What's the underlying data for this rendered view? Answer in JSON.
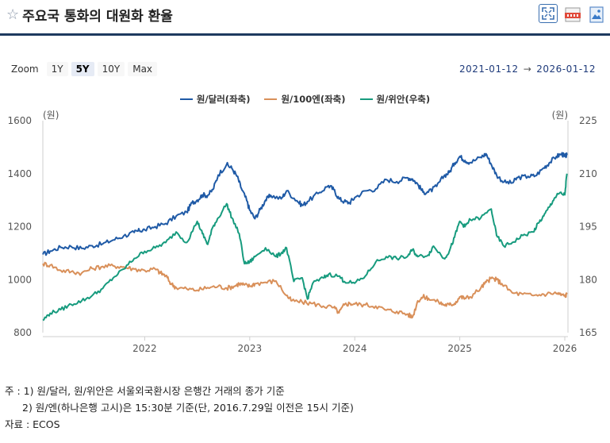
{
  "header": {
    "title": "주요국 통화의 대원화 환율",
    "icons": [
      "fullscreen-icon",
      "data-download-icon",
      "image-download-icon"
    ]
  },
  "zoom": {
    "label": "Zoom",
    "buttons": [
      "1Y",
      "5Y",
      "10Y",
      "Max"
    ],
    "active": "5Y"
  },
  "range": {
    "from": "2021-01-12",
    "arrow": "→",
    "to": "2026-01-12"
  },
  "chart_data": {
    "type": "line",
    "left_axis": {
      "unit": "(원)",
      "ticks": [
        "800",
        "1000",
        "1200",
        "1400",
        "1600"
      ],
      "ylim": [
        800,
        1600
      ]
    },
    "right_axis": {
      "unit": "(원)",
      "ticks": [
        "165",
        "180",
        "195",
        "210",
        "225"
      ],
      "ylim": [
        165,
        225
      ]
    },
    "x_ticks": [
      "2022",
      "2023",
      "2024",
      "2025",
      "2026"
    ],
    "x_range": [
      2021.03,
      2026.03
    ],
    "series": [
      {
        "name": "원/달러(좌축)",
        "color": "#1f5aa6",
        "axis": "left",
        "points": [
          [
            2021.03,
            1095
          ],
          [
            2021.1,
            1108
          ],
          [
            2021.2,
            1122
          ],
          [
            2021.3,
            1125
          ],
          [
            2021.4,
            1118
          ],
          [
            2021.5,
            1128
          ],
          [
            2021.6,
            1135
          ],
          [
            2021.7,
            1150
          ],
          [
            2021.8,
            1165
          ],
          [
            2021.9,
            1178
          ],
          [
            2021.95,
            1185
          ],
          [
            2022.0,
            1188
          ],
          [
            2022.1,
            1200
          ],
          [
            2022.2,
            1212
          ],
          [
            2022.3,
            1240
          ],
          [
            2022.4,
            1255
          ],
          [
            2022.45,
            1290
          ],
          [
            2022.5,
            1300
          ],
          [
            2022.55,
            1320
          ],
          [
            2022.6,
            1318
          ],
          [
            2022.65,
            1340
          ],
          [
            2022.7,
            1395
          ],
          [
            2022.78,
            1435
          ],
          [
            2022.83,
            1420
          ],
          [
            2022.88,
            1390
          ],
          [
            2022.92,
            1345
          ],
          [
            2022.97,
            1300
          ],
          [
            2023.0,
            1262
          ],
          [
            2023.05,
            1230
          ],
          [
            2023.1,
            1265
          ],
          [
            2023.15,
            1300
          ],
          [
            2023.2,
            1318
          ],
          [
            2023.3,
            1305
          ],
          [
            2023.35,
            1335
          ],
          [
            2023.45,
            1298
          ],
          [
            2023.5,
            1280
          ],
          [
            2023.55,
            1295
          ],
          [
            2023.65,
            1325
          ],
          [
            2023.75,
            1355
          ],
          [
            2023.8,
            1340
          ],
          [
            2023.85,
            1305
          ],
          [
            2023.9,
            1295
          ],
          [
            2023.95,
            1290
          ],
          [
            2024.0,
            1310
          ],
          [
            2024.1,
            1335
          ],
          [
            2024.2,
            1342
          ],
          [
            2024.3,
            1378
          ],
          [
            2024.4,
            1370
          ],
          [
            2024.5,
            1385
          ],
          [
            2024.55,
            1380
          ],
          [
            2024.6,
            1360
          ],
          [
            2024.65,
            1330
          ],
          [
            2024.7,
            1330
          ],
          [
            2024.78,
            1352
          ],
          [
            2024.85,
            1392
          ],
          [
            2024.9,
            1405
          ],
          [
            2024.95,
            1440
          ],
          [
            2025.0,
            1465
          ],
          [
            2025.05,
            1450
          ],
          [
            2025.1,
            1442
          ],
          [
            2025.2,
            1462
          ],
          [
            2025.25,
            1475
          ],
          [
            2025.3,
            1435
          ],
          [
            2025.35,
            1395
          ],
          [
            2025.42,
            1368
          ],
          [
            2025.5,
            1365
          ],
          [
            2025.55,
            1385
          ],
          [
            2025.65,
            1390
          ],
          [
            2025.72,
            1392
          ],
          [
            2025.8,
            1422
          ],
          [
            2025.85,
            1440
          ],
          [
            2025.92,
            1465
          ],
          [
            2025.97,
            1475
          ],
          [
            2026.0,
            1465
          ],
          [
            2026.02,
            1470
          ]
        ]
      },
      {
        "name": "원/100엔(좌축)",
        "color": "#d9905a",
        "axis": "left",
        "points": [
          [
            2021.03,
            1060
          ],
          [
            2021.1,
            1055
          ],
          [
            2021.2,
            1035
          ],
          [
            2021.3,
            1030
          ],
          [
            2021.4,
            1025
          ],
          [
            2021.5,
            1042
          ],
          [
            2021.6,
            1050
          ],
          [
            2021.7,
            1052
          ],
          [
            2021.8,
            1048
          ],
          [
            2021.9,
            1040
          ],
          [
            2022.0,
            1035
          ],
          [
            2022.1,
            1040
          ],
          [
            2022.15,
            1025
          ],
          [
            2022.2,
            1015
          ],
          [
            2022.25,
            985
          ],
          [
            2022.3,
            970
          ],
          [
            2022.4,
            965
          ],
          [
            2022.5,
            960
          ],
          [
            2022.6,
            970
          ],
          [
            2022.7,
            975
          ],
          [
            2022.78,
            968
          ],
          [
            2022.85,
            975
          ],
          [
            2022.9,
            985
          ],
          [
            2022.95,
            980
          ],
          [
            2023.0,
            975
          ],
          [
            2023.05,
            985
          ],
          [
            2023.15,
            990
          ],
          [
            2023.25,
            995
          ],
          [
            2023.35,
            940
          ],
          [
            2023.4,
            920
          ],
          [
            2023.5,
            915
          ],
          [
            2023.6,
            910
          ],
          [
            2023.7,
            900
          ],
          [
            2023.8,
            895
          ],
          [
            2023.85,
            875
          ],
          [
            2023.9,
            905
          ],
          [
            2023.95,
            910
          ],
          [
            2024.0,
            908
          ],
          [
            2024.1,
            905
          ],
          [
            2024.2,
            900
          ],
          [
            2024.3,
            885
          ],
          [
            2024.4,
            880
          ],
          [
            2024.5,
            870
          ],
          [
            2024.55,
            858
          ],
          [
            2024.6,
            920
          ],
          [
            2024.65,
            935
          ],
          [
            2024.7,
            930
          ],
          [
            2024.8,
            915
          ],
          [
            2024.85,
            905
          ],
          [
            2024.9,
            905
          ],
          [
            2024.95,
            910
          ],
          [
            2025.0,
            935
          ],
          [
            2025.05,
            930
          ],
          [
            2025.1,
            935
          ],
          [
            2025.2,
            968
          ],
          [
            2025.25,
            990
          ],
          [
            2025.3,
            1005
          ],
          [
            2025.35,
            1000
          ],
          [
            2025.4,
            985
          ],
          [
            2025.5,
            950
          ],
          [
            2025.6,
            945
          ],
          [
            2025.7,
            940
          ],
          [
            2025.8,
            945
          ],
          [
            2025.9,
            950
          ],
          [
            2025.95,
            945
          ],
          [
            2026.0,
            938
          ],
          [
            2026.02,
            945
          ]
        ]
      },
      {
        "name": "원/위안(우축)",
        "color": "#179b7e",
        "axis": "right",
        "points": [
          [
            2021.03,
            168.5
          ],
          [
            2021.1,
            170.5
          ],
          [
            2021.2,
            171.5
          ],
          [
            2021.3,
            173.0
          ],
          [
            2021.4,
            174.0
          ],
          [
            2021.5,
            175.5
          ],
          [
            2021.6,
            177.5
          ],
          [
            2021.7,
            180.5
          ],
          [
            2021.8,
            183.0
          ],
          [
            2021.9,
            186.0
          ],
          [
            2022.0,
            188.0
          ],
          [
            2022.1,
            189.0
          ],
          [
            2022.2,
            190.5
          ],
          [
            2022.3,
            193.5
          ],
          [
            2022.4,
            190.5
          ],
          [
            2022.5,
            196.5
          ],
          [
            2022.55,
            193.0
          ],
          [
            2022.6,
            190.0
          ],
          [
            2022.65,
            195.0
          ],
          [
            2022.7,
            197.5
          ],
          [
            2022.78,
            201.5
          ],
          [
            2022.83,
            197.5
          ],
          [
            2022.9,
            193.0
          ],
          [
            2022.95,
            184.5
          ],
          [
            2023.0,
            185.0
          ],
          [
            2023.05,
            186.5
          ],
          [
            2023.15,
            189.0
          ],
          [
            2023.25,
            186.5
          ],
          [
            2023.3,
            187.5
          ],
          [
            2023.35,
            189.0
          ],
          [
            2023.42,
            179.5
          ],
          [
            2023.5,
            180.5
          ],
          [
            2023.55,
            174.5
          ],
          [
            2023.6,
            179.0
          ],
          [
            2023.7,
            180.5
          ],
          [
            2023.75,
            181.5
          ],
          [
            2023.85,
            181.0
          ],
          [
            2023.9,
            179.5
          ],
          [
            2024.0,
            179.0
          ],
          [
            2024.1,
            181.0
          ],
          [
            2024.2,
            185.0
          ],
          [
            2024.3,
            186.5
          ],
          [
            2024.4,
            186.0
          ],
          [
            2024.5,
            186.5
          ],
          [
            2024.55,
            188.5
          ],
          [
            2024.6,
            186.5
          ],
          [
            2024.7,
            187.0
          ],
          [
            2024.75,
            189.5
          ],
          [
            2024.85,
            186.0
          ],
          [
            2024.9,
            188.0
          ],
          [
            2024.95,
            192.0
          ],
          [
            2025.0,
            196.5
          ],
          [
            2025.05,
            195.0
          ],
          [
            2025.1,
            197.0
          ],
          [
            2025.2,
            197.5
          ],
          [
            2025.3,
            200.0
          ],
          [
            2025.35,
            192.5
          ],
          [
            2025.42,
            189.5
          ],
          [
            2025.5,
            190.5
          ],
          [
            2025.6,
            192.5
          ],
          [
            2025.7,
            193.5
          ],
          [
            2025.75,
            196.0
          ],
          [
            2025.8,
            198.0
          ],
          [
            2025.85,
            200.5
          ],
          [
            2025.9,
            203.0
          ],
          [
            2025.95,
            204.5
          ],
          [
            2026.0,
            204.0
          ],
          [
            2026.02,
            210.0
          ]
        ]
      }
    ]
  },
  "notes": {
    "line1": "주 : 1) 원/달러, 원/위안은 서울외국환시장 은행간 거래의 종가 기준",
    "line2": "2) 원/엔(하나은행 고시)은 15:30분 기준(단, 2016.7.29일 이전은 15시 기준)",
    "source": "자료 : ECOS"
  }
}
